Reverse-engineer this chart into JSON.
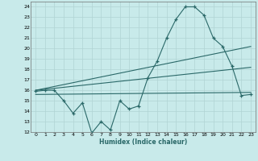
{
  "xlabel": "Humidex (Indice chaleur)",
  "bg_color": "#c8eaea",
  "grid_color": "#b0d4d4",
  "line_color": "#2a6868",
  "xlim": [
    -0.5,
    23.5
  ],
  "ylim": [
    12,
    24.5
  ],
  "yticks": [
    12,
    13,
    14,
    15,
    16,
    17,
    18,
    19,
    20,
    21,
    22,
    23,
    24
  ],
  "xticks": [
    0,
    1,
    2,
    3,
    4,
    5,
    6,
    7,
    8,
    9,
    10,
    11,
    12,
    13,
    14,
    15,
    16,
    17,
    18,
    19,
    20,
    21,
    22,
    23
  ],
  "main_series": {
    "x": [
      0,
      1,
      2,
      3,
      4,
      5,
      6,
      7,
      8,
      9,
      10,
      11,
      12,
      13,
      14,
      15,
      16,
      17,
      18,
      19,
      20,
      21,
      22,
      23
    ],
    "y": [
      15.9,
      16.0,
      16.0,
      15.0,
      13.8,
      14.8,
      11.9,
      13.0,
      12.2,
      15.0,
      14.2,
      14.5,
      17.2,
      18.8,
      21.0,
      22.8,
      24.0,
      24.0,
      23.2,
      21.0,
      20.2,
      18.3,
      15.5,
      15.6
    ]
  },
  "trend_lines": [
    {
      "x": [
        0,
        23
      ],
      "y": [
        16.0,
        20.2
      ]
    },
    {
      "x": [
        0,
        23
      ],
      "y": [
        16.0,
        18.2
      ]
    },
    {
      "x": [
        0,
        23
      ],
      "y": [
        15.6,
        15.8
      ]
    }
  ]
}
